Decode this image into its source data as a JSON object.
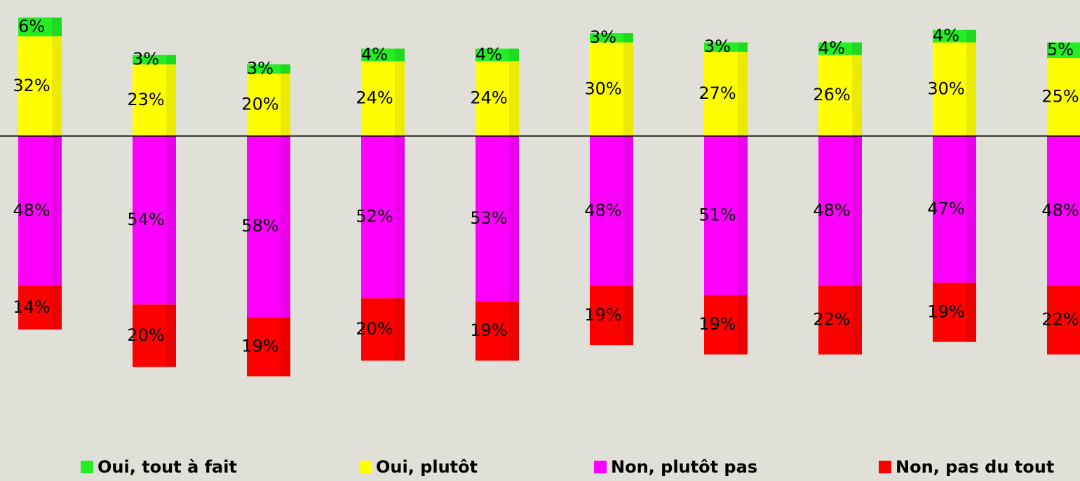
{
  "chart_data": {
    "type": "diverging-stacked-bar",
    "categories": [
      null,
      null,
      null,
      null,
      null,
      null,
      null,
      null,
      null,
      null
    ],
    "series": [
      {
        "name": "Oui, tout à fait",
        "color": "#22ee22",
        "values": [
          6,
          3,
          3,
          4,
          4,
          3,
          3,
          4,
          4,
          5
        ],
        "value_labels": [
          "6%",
          "3%",
          "3%",
          "4%",
          "4%",
          "3%",
          "3%",
          "4%",
          "4%",
          "5%"
        ]
      },
      {
        "name": "Oui, plutôt",
        "color": "#ffff00",
        "values": [
          32,
          23,
          20,
          24,
          24,
          30,
          27,
          26,
          30,
          25
        ],
        "value_labels": [
          "32%",
          "23%",
          "20%",
          "24%",
          "24%",
          "30%",
          "27%",
          "26%",
          "30%",
          "25%"
        ]
      },
      {
        "name": "Non, plutôt pas",
        "color": "#ff00ff",
        "values": [
          48,
          54,
          58,
          52,
          53,
          48,
          51,
          48,
          47,
          48
        ],
        "value_labels": [
          "48%",
          "54%",
          "58%",
          "52%",
          "53%",
          "48%",
          "51%",
          "48%",
          "47%",
          "48%"
        ]
      },
      {
        "name": "Non, pas du tout",
        "color": "#ff0000",
        "values": [
          14,
          20,
          19,
          20,
          19,
          19,
          19,
          22,
          19,
          22
        ],
        "value_labels": [
          "14%",
          "20%",
          "19%",
          "20%",
          "19%",
          "19%",
          "19%",
          "22%",
          "19%",
          "22%"
        ]
      }
    ]
  }
}
